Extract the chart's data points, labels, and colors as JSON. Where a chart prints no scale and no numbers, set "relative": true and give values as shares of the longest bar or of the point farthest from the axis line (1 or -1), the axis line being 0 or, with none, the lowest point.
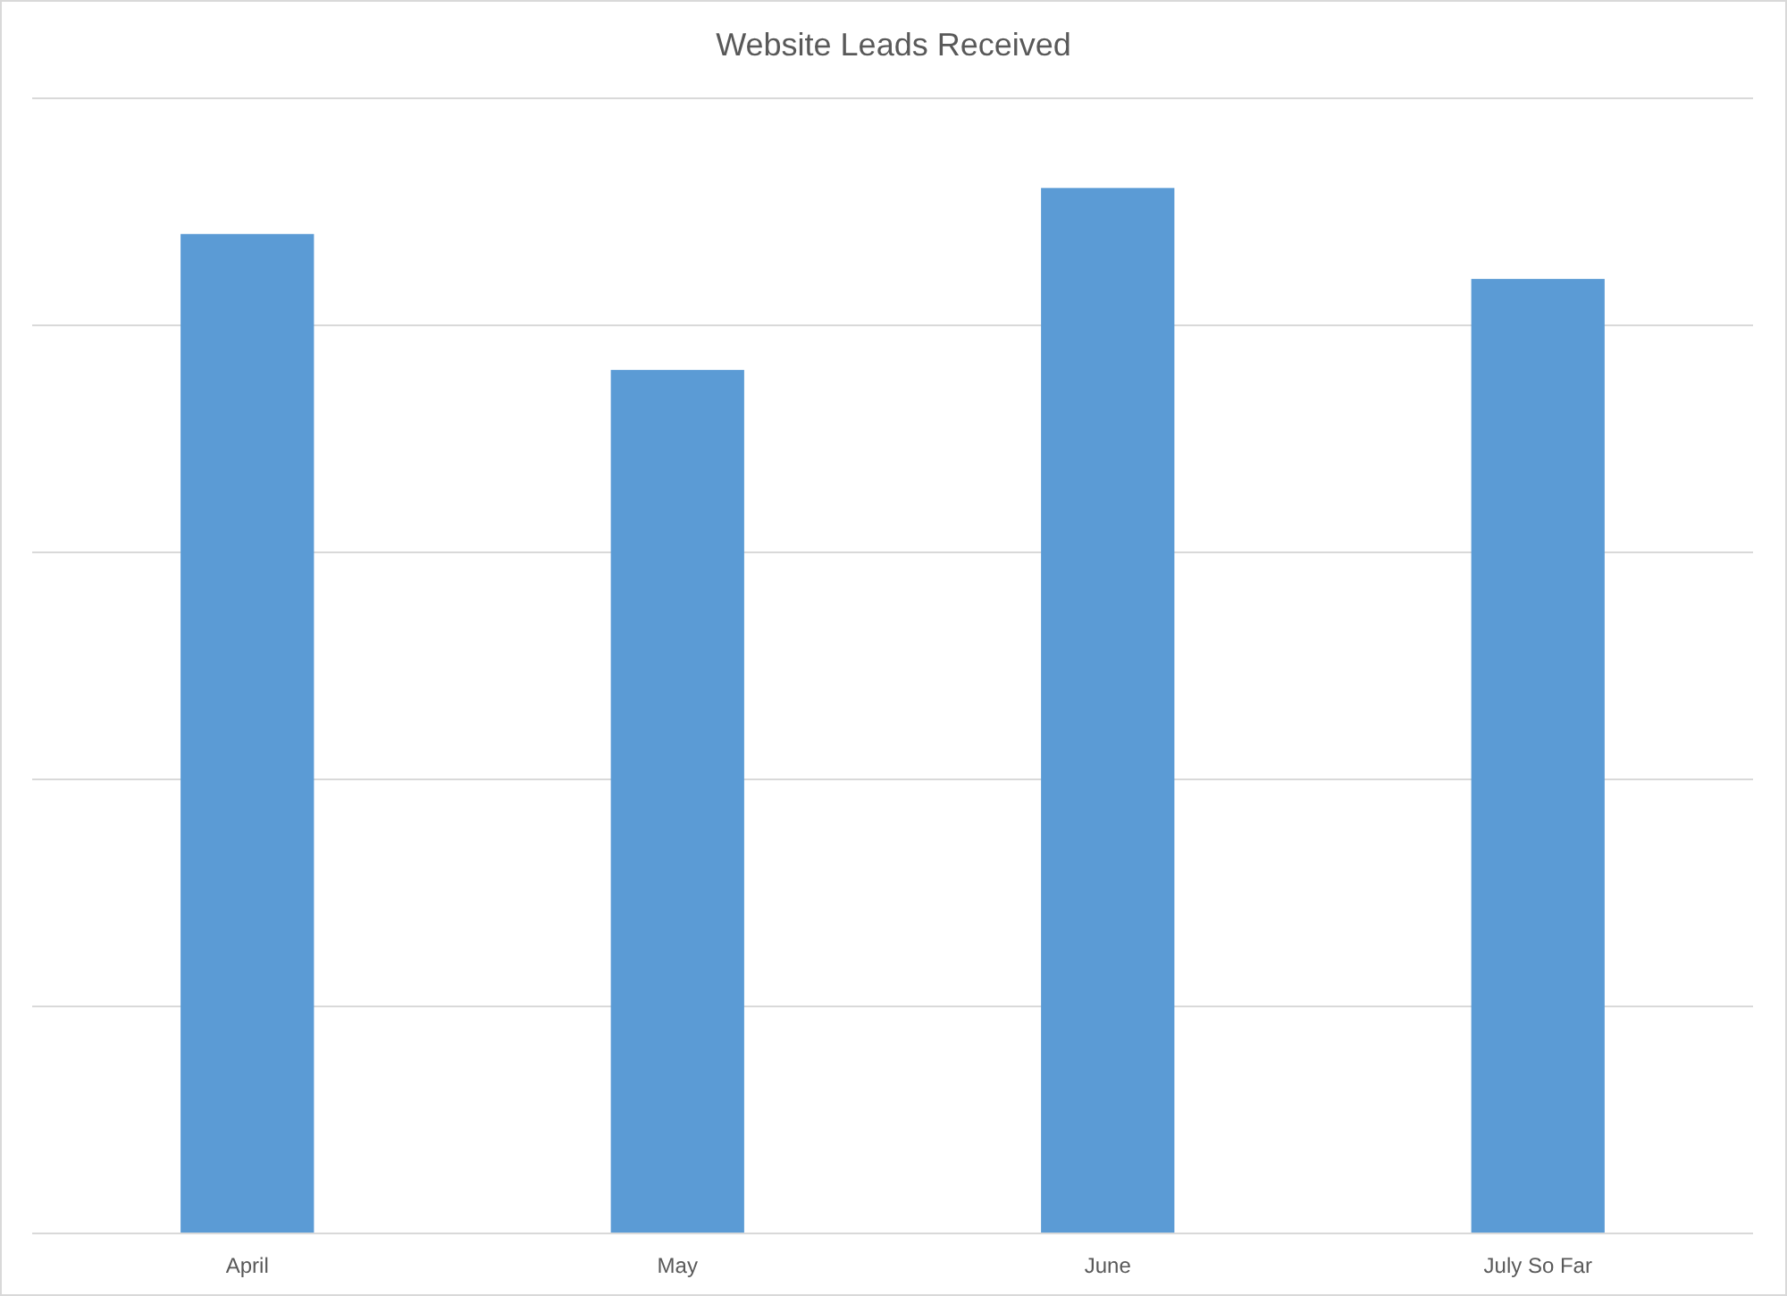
{
  "chart_data": {
    "type": "bar",
    "title": "Website Leads Received",
    "categories": [
      "April",
      "May",
      "June",
      "July So Far"
    ],
    "values": [
      0.956,
      0.826,
      1,
      0.913
    ],
    "color": "#5b9bd5",
    "relative": true,
    "grid": "y"
  }
}
